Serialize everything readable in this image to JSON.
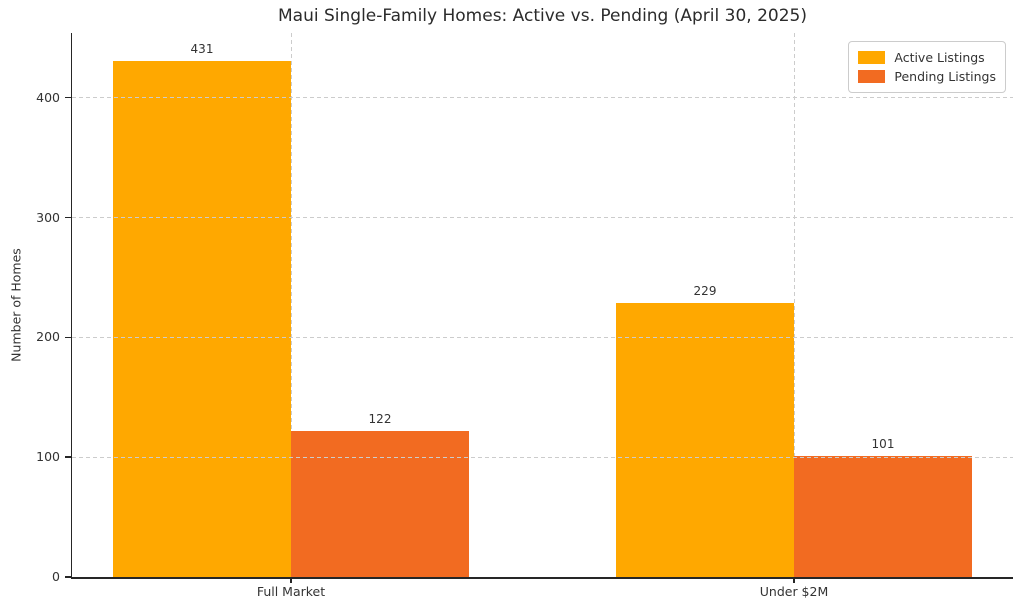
{
  "chart_data": {
    "type": "bar",
    "title": "Maui Single-Family Homes: Active vs. Pending (April 30, 2025)",
    "xlabel": "",
    "ylabel": "Number of Homes",
    "categories": [
      "Full Market",
      "Under $2M"
    ],
    "series": [
      {
        "name": "Active Listings",
        "color": "#FFA800",
        "values": [
          431,
          229
        ]
      },
      {
        "name": "Pending Listings",
        "color": "#F26B21",
        "values": [
          122,
          101
        ]
      }
    ],
    "yticks": [
      0,
      100,
      200,
      300,
      400
    ],
    "ylim": [
      0,
      454
    ],
    "grid": true,
    "grid_style": "dashed",
    "grid_color": "#cccccc",
    "legend_position": "upper right",
    "value_labels": [
      [
        431,
        229
      ],
      [
        122,
        101
      ]
    ]
  }
}
